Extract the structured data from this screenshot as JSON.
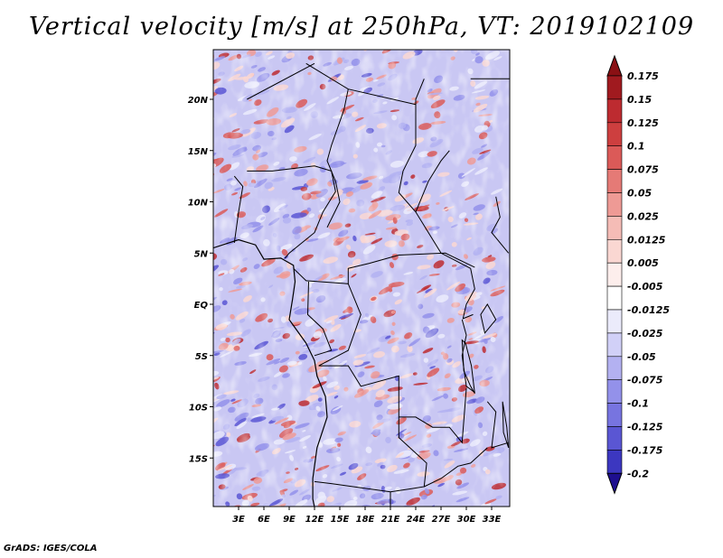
{
  "title": "Vertical velocity [m/s] at 250hPa, VT: 2019102109",
  "credit": "GrADS: IGES/COLA",
  "lat_labels": [
    {
      "text": "20N",
      "lat": 20
    },
    {
      "text": "15N",
      "lat": 15
    },
    {
      "text": "10N",
      "lat": 10
    },
    {
      "text": "5N",
      "lat": 5
    },
    {
      "text": "EQ",
      "lat": 0
    },
    {
      "text": "5S",
      "lat": -5
    },
    {
      "text": "10S",
      "lat": -10
    },
    {
      "text": "15S",
      "lat": -15
    }
  ],
  "lon_labels": [
    {
      "text": "3E",
      "lon": 3
    },
    {
      "text": "6E",
      "lon": 6
    },
    {
      "text": "9E",
      "lon": 9
    },
    {
      "text": "12E",
      "lon": 12
    },
    {
      "text": "15E",
      "lon": 15
    },
    {
      "text": "18E",
      "lon": 18
    },
    {
      "text": "21E",
      "lon": 21
    },
    {
      "text": "24E",
      "lon": 24
    },
    {
      "text": "27E",
      "lon": 27
    },
    {
      "text": "30E",
      "lon": 30
    },
    {
      "text": "33E",
      "lon": 33
    }
  ],
  "colorbar": [
    {
      "label": "0.175",
      "color": "#a01a1f"
    },
    {
      "label": "0.15",
      "color": "#bd2b30"
    },
    {
      "label": "0.125",
      "color": "#cd3f3f"
    },
    {
      "label": "0.1",
      "color": "#db5a58"
    },
    {
      "label": "0.075",
      "color": "#e57a76"
    },
    {
      "label": "0.05",
      "color": "#ee9a95"
    },
    {
      "label": "0.025",
      "color": "#f5bcb6"
    },
    {
      "label": "0.0125",
      "color": "#fad7d2"
    },
    {
      "label": "0.005",
      "color": "#fdeeec"
    },
    {
      "label": "-0.005",
      "color": "#ffffff"
    },
    {
      "label": "-0.0125",
      "color": "#ebebfb"
    },
    {
      "label": "-0.025",
      "color": "#d1d0f7"
    },
    {
      "label": "-0.05",
      "color": "#b3b1f1"
    },
    {
      "label": "-0.075",
      "color": "#9391ea"
    },
    {
      "label": "-0.1",
      "color": "#7774e0"
    },
    {
      "label": "-0.125",
      "color": "#5a56d3"
    },
    {
      "label": "-0.175",
      "color": "#3c37c0"
    },
    {
      "label": "-0.2",
      "color": "#2a1fa8"
    }
  ],
  "colorbar_top_color": "#8a1014",
  "colorbar_bottom_color": "#1e0f8f",
  "map_colors": {
    "border": "#000000",
    "land_base": "#c9c7f3"
  }
}
